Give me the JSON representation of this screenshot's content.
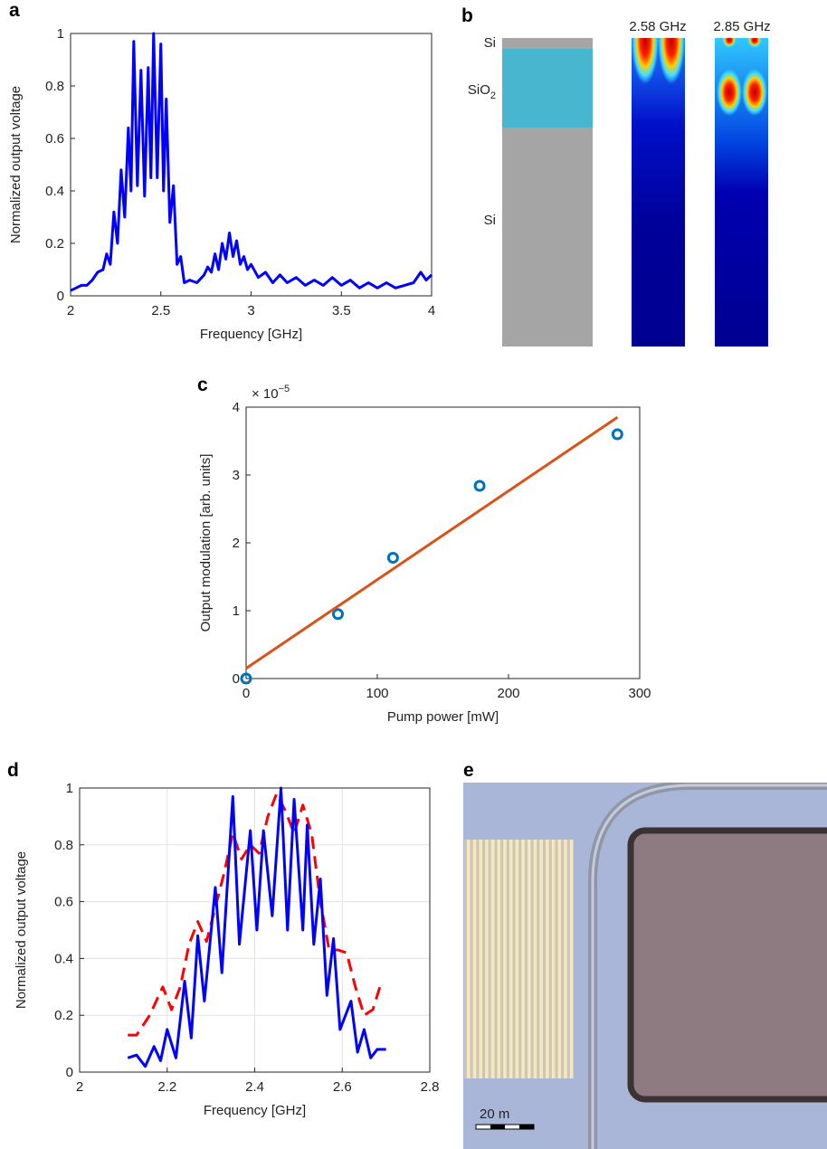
{
  "chart_data": [
    {
      "type": "line",
      "panel": "a",
      "x_label": "Frequency [GHz]",
      "y_label": "Normalized output voltage",
      "xlim": [
        2,
        4
      ],
      "xticks": [
        2,
        2.5,
        3,
        3.5,
        4
      ],
      "ylim": [
        0,
        1
      ],
      "yticks": [
        0,
        0.2,
        0.4,
        0.6,
        0.8,
        1
      ],
      "grid": false,
      "series": [
        {
          "color": "#0000ff",
          "dash": false,
          "x": [
            2.0,
            2.03,
            2.06,
            2.09,
            2.12,
            2.15,
            2.18,
            2.2,
            2.22,
            2.24,
            2.26,
            2.28,
            2.3,
            2.32,
            2.335,
            2.35,
            2.37,
            2.39,
            2.41,
            2.43,
            2.445,
            2.46,
            2.48,
            2.5,
            2.515,
            2.53,
            2.55,
            2.57,
            2.59,
            2.61,
            2.63,
            2.66,
            2.7,
            2.74,
            2.76,
            2.78,
            2.8,
            2.82,
            2.84,
            2.86,
            2.88,
            2.9,
            2.92,
            2.94,
            2.96,
            2.98,
            3.0,
            3.04,
            3.08,
            3.12,
            3.16,
            3.2,
            3.25,
            3.3,
            3.35,
            3.4,
            3.45,
            3.5,
            3.55,
            3.6,
            3.65,
            3.7,
            3.75,
            3.8,
            3.85,
            3.9,
            3.94,
            3.97,
            4.0
          ],
          "values": [
            0.02,
            0.03,
            0.04,
            0.04,
            0.06,
            0.09,
            0.1,
            0.16,
            0.12,
            0.32,
            0.2,
            0.48,
            0.3,
            0.64,
            0.4,
            0.97,
            0.42,
            0.86,
            0.38,
            0.87,
            0.45,
            1.0,
            0.45,
            0.96,
            0.4,
            0.75,
            0.28,
            0.42,
            0.12,
            0.15,
            0.05,
            0.06,
            0.05,
            0.08,
            0.11,
            0.09,
            0.16,
            0.1,
            0.2,
            0.14,
            0.24,
            0.15,
            0.21,
            0.12,
            0.15,
            0.1,
            0.12,
            0.07,
            0.09,
            0.05,
            0.08,
            0.05,
            0.07,
            0.04,
            0.06,
            0.04,
            0.07,
            0.04,
            0.06,
            0.03,
            0.05,
            0.03,
            0.05,
            0.03,
            0.04,
            0.05,
            0.09,
            0.06,
            0.08
          ]
        }
      ]
    },
    {
      "type": "scatter",
      "panel": "c",
      "x_label": "Pump power [mW]",
      "y_label": "Output modulation [arb. units]",
      "multiplier": {
        "base": "× 10",
        "exponent": "−5"
      },
      "xlim": [
        0,
        300
      ],
      "xticks": [
        0,
        100,
        200,
        300
      ],
      "ylim": [
        0,
        4
      ],
      "yticks": [
        0,
        1,
        2,
        3,
        4
      ],
      "grid": false,
      "series": [
        {
          "color": "#0072bd",
          "style": "markers",
          "x": [
            0,
            70,
            112,
            178,
            283
          ],
          "values": [
            0,
            0.95,
            1.78,
            2.84,
            3.6
          ]
        },
        {
          "color": "#d95319",
          "style": "line",
          "x": [
            0,
            283
          ],
          "values": [
            0.15,
            3.85
          ]
        }
      ]
    },
    {
      "type": "line",
      "panel": "d",
      "x_label": "Frequency [GHz]",
      "y_label": "Normalized output voltage",
      "xlim": [
        2,
        2.8
      ],
      "xticks": [
        2,
        2.2,
        2.4,
        2.6,
        2.8
      ],
      "ylim": [
        0,
        1
      ],
      "yticks": [
        0,
        0.2,
        0.4,
        0.6,
        0.8,
        1
      ],
      "grid": true,
      "series": [
        {
          "color": "#ff0000",
          "dash": true,
          "x": [
            2.11,
            2.13,
            2.16,
            2.19,
            2.21,
            2.23,
            2.25,
            2.27,
            2.29,
            2.31,
            2.33,
            2.35,
            2.37,
            2.39,
            2.41,
            2.43,
            2.45,
            2.47,
            2.49,
            2.51,
            2.53,
            2.55,
            2.57,
            2.59,
            2.61,
            2.63,
            2.65,
            2.67,
            2.69
          ],
          "values": [
            0.13,
            0.13,
            0.2,
            0.3,
            0.22,
            0.3,
            0.45,
            0.53,
            0.46,
            0.58,
            0.7,
            0.84,
            0.75,
            0.8,
            0.77,
            0.9,
            0.98,
            0.92,
            0.84,
            0.94,
            0.84,
            0.6,
            0.43,
            0.43,
            0.42,
            0.3,
            0.2,
            0.22,
            0.32
          ]
        },
        {
          "color": "#0000ff",
          "dash": false,
          "x": [
            2.11,
            2.13,
            2.15,
            2.17,
            2.185,
            2.2,
            2.22,
            2.24,
            2.255,
            2.27,
            2.285,
            2.31,
            2.325,
            2.35,
            2.365,
            2.39,
            2.405,
            2.42,
            2.44,
            2.46,
            2.475,
            2.49,
            2.51,
            2.52,
            2.535,
            2.55,
            2.565,
            2.58,
            2.595,
            2.62,
            2.635,
            2.65,
            2.665,
            2.68,
            2.7
          ],
          "values": [
            0.05,
            0.06,
            0.02,
            0.09,
            0.04,
            0.15,
            0.05,
            0.32,
            0.12,
            0.48,
            0.25,
            0.65,
            0.35,
            0.97,
            0.45,
            0.85,
            0.5,
            0.85,
            0.55,
            1.0,
            0.5,
            0.96,
            0.5,
            0.87,
            0.45,
            0.68,
            0.27,
            0.47,
            0.15,
            0.25,
            0.07,
            0.15,
            0.05,
            0.08,
            0.08
          ]
        }
      ]
    }
  ],
  "figure_b": {
    "panel": "b",
    "layers": [
      {
        "label": "Si"
      },
      {
        "label": "SiO",
        "subscript": "2"
      },
      {
        "label": "Si"
      }
    ],
    "mode_titles": [
      "2.58 GHz",
      "2.85 GHz"
    ]
  },
  "figure_e": {
    "panel": "e",
    "scale_bar": "20 m"
  }
}
